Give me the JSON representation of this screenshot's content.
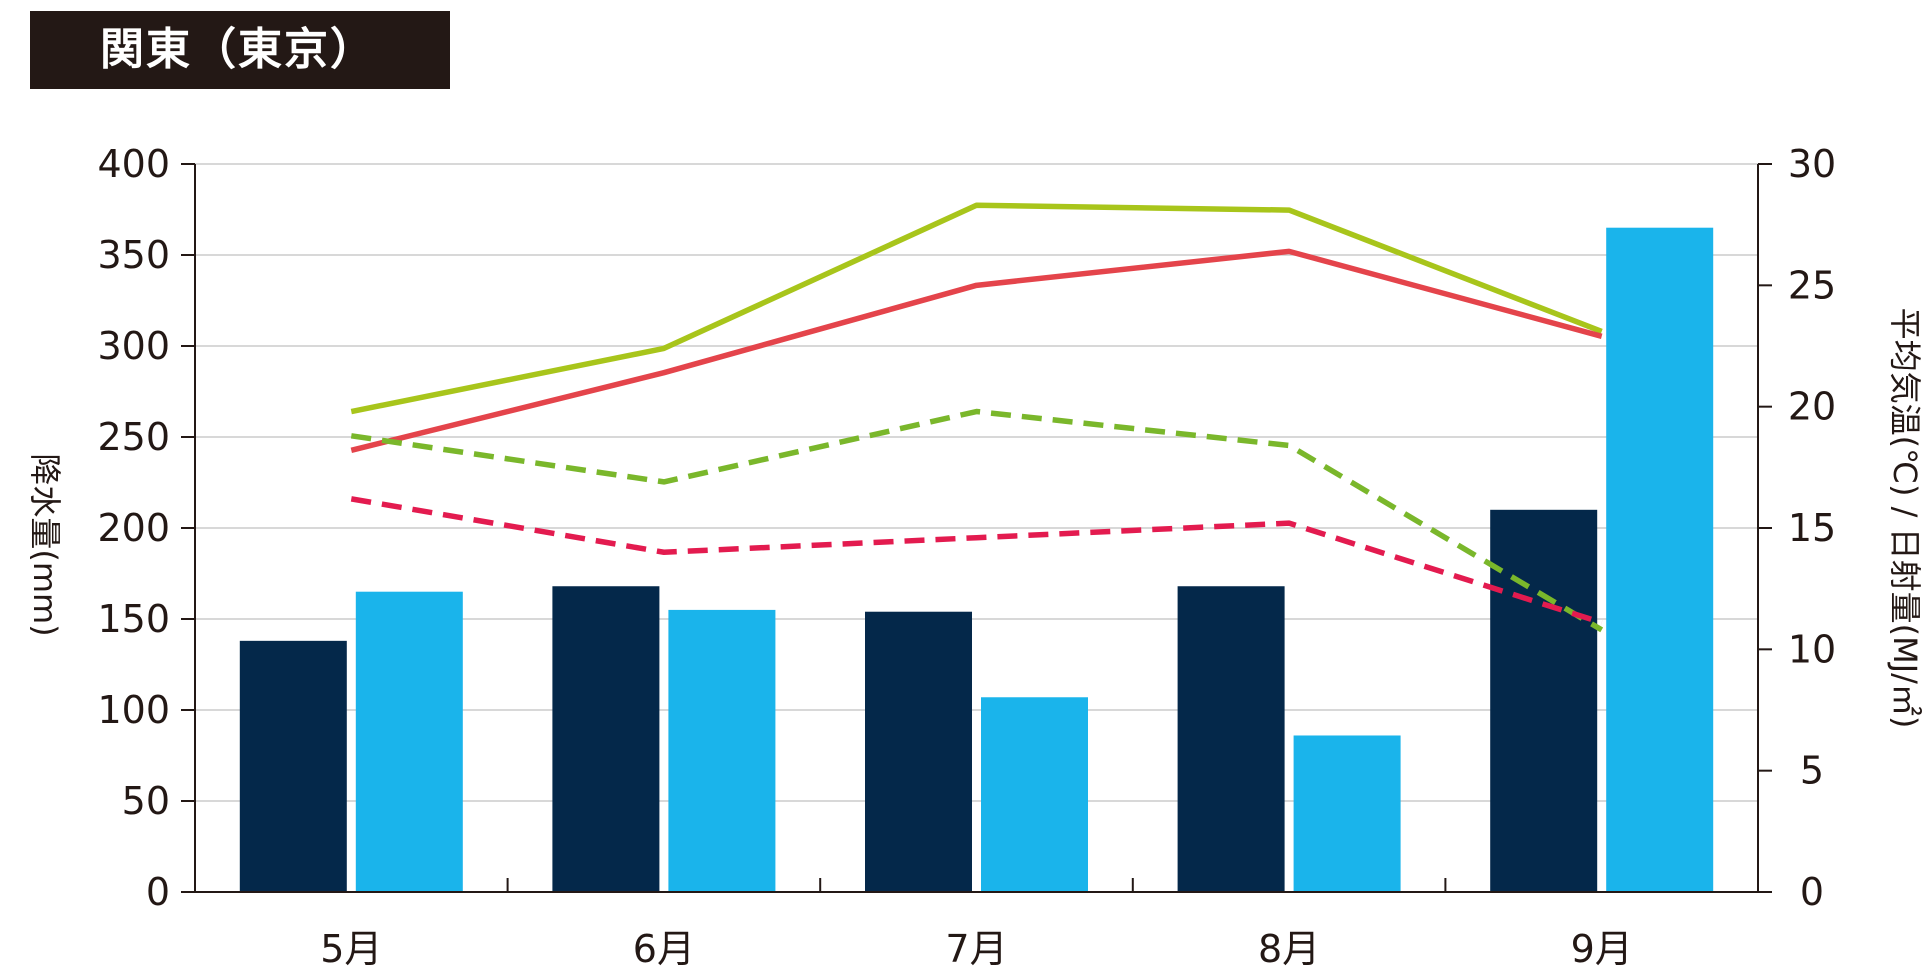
{
  "header": {
    "title": "関東（東京）"
  },
  "chart_data": {
    "type": "bar",
    "title": "関東（東京）",
    "categories": [
      "5月",
      "6月",
      "7月",
      "8月",
      "9月"
    ],
    "y_left": {
      "label": "降水量(mm)",
      "ylim": [
        0,
        400
      ],
      "ticks": [
        0,
        50,
        100,
        150,
        200,
        250,
        300,
        350,
        400
      ]
    },
    "y_right": {
      "label": "平均気温(℃) / 日射量(MJ/㎡)",
      "ylim": [
        0,
        30
      ],
      "ticks": [
        0,
        5,
        10,
        15,
        20,
        25,
        30
      ]
    },
    "grid": true,
    "colors": {
      "bar_series_1": "#04284a",
      "bar_series_2": "#1ab4eb",
      "line_green_solid": "#a8c51b",
      "line_red_solid": "#e4444b",
      "line_green_dashed": "#7ab72b",
      "line_red_dashed": "#e31b4f",
      "axis": "#231815",
      "grid": "#cccccc"
    },
    "bar_series": [
      {
        "values": [
          138,
          168,
          154,
          168,
          210
        ]
      },
      {
        "values": [
          165,
          155,
          107,
          86,
          365
        ]
      }
    ],
    "line_series": [
      {
        "axis": "right",
        "style": "solid",
        "values": [
          19.8,
          22.4,
          28.3,
          28.1,
          23.1
        ]
      },
      {
        "axis": "right",
        "style": "solid",
        "values": [
          18.2,
          21.4,
          25.0,
          26.4,
          22.9
        ]
      },
      {
        "axis": "right",
        "style": "dashed",
        "values": [
          18.8,
          16.9,
          19.8,
          18.4,
          10.8
        ]
      },
      {
        "axis": "right",
        "style": "dashed",
        "values": [
          16.2,
          14.0,
          14.6,
          15.2,
          11.1
        ]
      }
    ]
  }
}
